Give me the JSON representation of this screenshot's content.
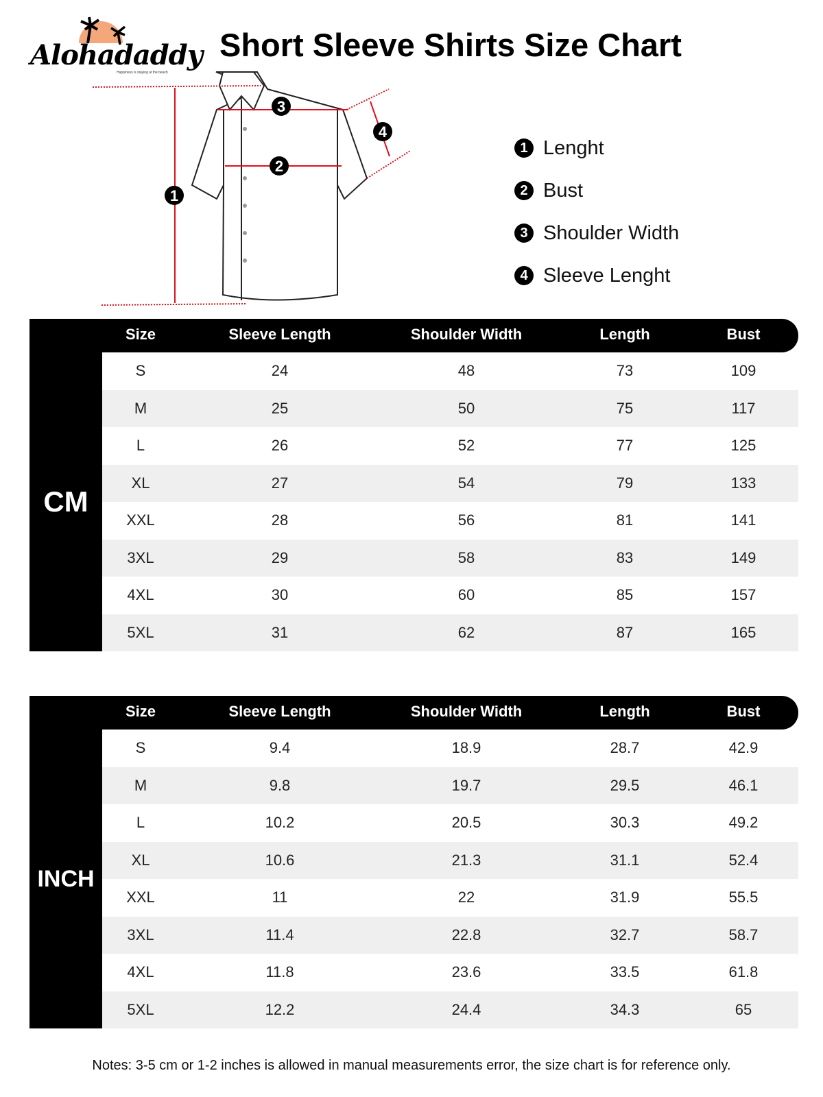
{
  "brand": {
    "name": "Alohadaddy",
    "tagline": "Happiness is staying at the beach",
    "sun_color": "#f3a77a"
  },
  "title": "Short Sleeve Shirts Size Chart",
  "measure_color": "#e0101a",
  "legend": [
    {
      "num": "1",
      "label": "Lenght"
    },
    {
      "num": "2",
      "label": "Bust"
    },
    {
      "num": "3",
      "label": "Shoulder Width"
    },
    {
      "num": "4",
      "label": "Sleeve Lenght"
    }
  ],
  "columns": [
    "Size",
    "Sleeve Length",
    "Shoulder Width",
    "Length",
    "Bust"
  ],
  "tables": [
    {
      "unit": "CM",
      "rows": [
        [
          "S",
          "24",
          "48",
          "73",
          "109"
        ],
        [
          "M",
          "25",
          "50",
          "75",
          "117"
        ],
        [
          "L",
          "26",
          "52",
          "77",
          "125"
        ],
        [
          "XL",
          "27",
          "54",
          "79",
          "133"
        ],
        [
          "XXL",
          "28",
          "56",
          "81",
          "141"
        ],
        [
          "3XL",
          "29",
          "58",
          "83",
          "149"
        ],
        [
          "4XL",
          "30",
          "60",
          "85",
          "157"
        ],
        [
          "5XL",
          "31",
          "62",
          "87",
          "165"
        ]
      ]
    },
    {
      "unit": "INCH",
      "rows": [
        [
          "S",
          "9.4",
          "18.9",
          "28.7",
          "42.9"
        ],
        [
          "M",
          "9.8",
          "19.7",
          "29.5",
          "46.1"
        ],
        [
          "L",
          "10.2",
          "20.5",
          "30.3",
          "49.2"
        ],
        [
          "XL",
          "10.6",
          "21.3",
          "31.1",
          "52.4"
        ],
        [
          "XXL",
          "11",
          "22",
          "31.9",
          "55.5"
        ],
        [
          "3XL",
          "11.4",
          "22.8",
          "32.7",
          "58.7"
        ],
        [
          "4XL",
          "11.8",
          "23.6",
          "33.5",
          "61.8"
        ],
        [
          "5XL",
          "12.2",
          "24.4",
          "34.3",
          "65"
        ]
      ]
    }
  ],
  "notes": "Notes: 3-5 cm or 1-2 inches is allowed in manual measurements error, the size chart is for reference only."
}
